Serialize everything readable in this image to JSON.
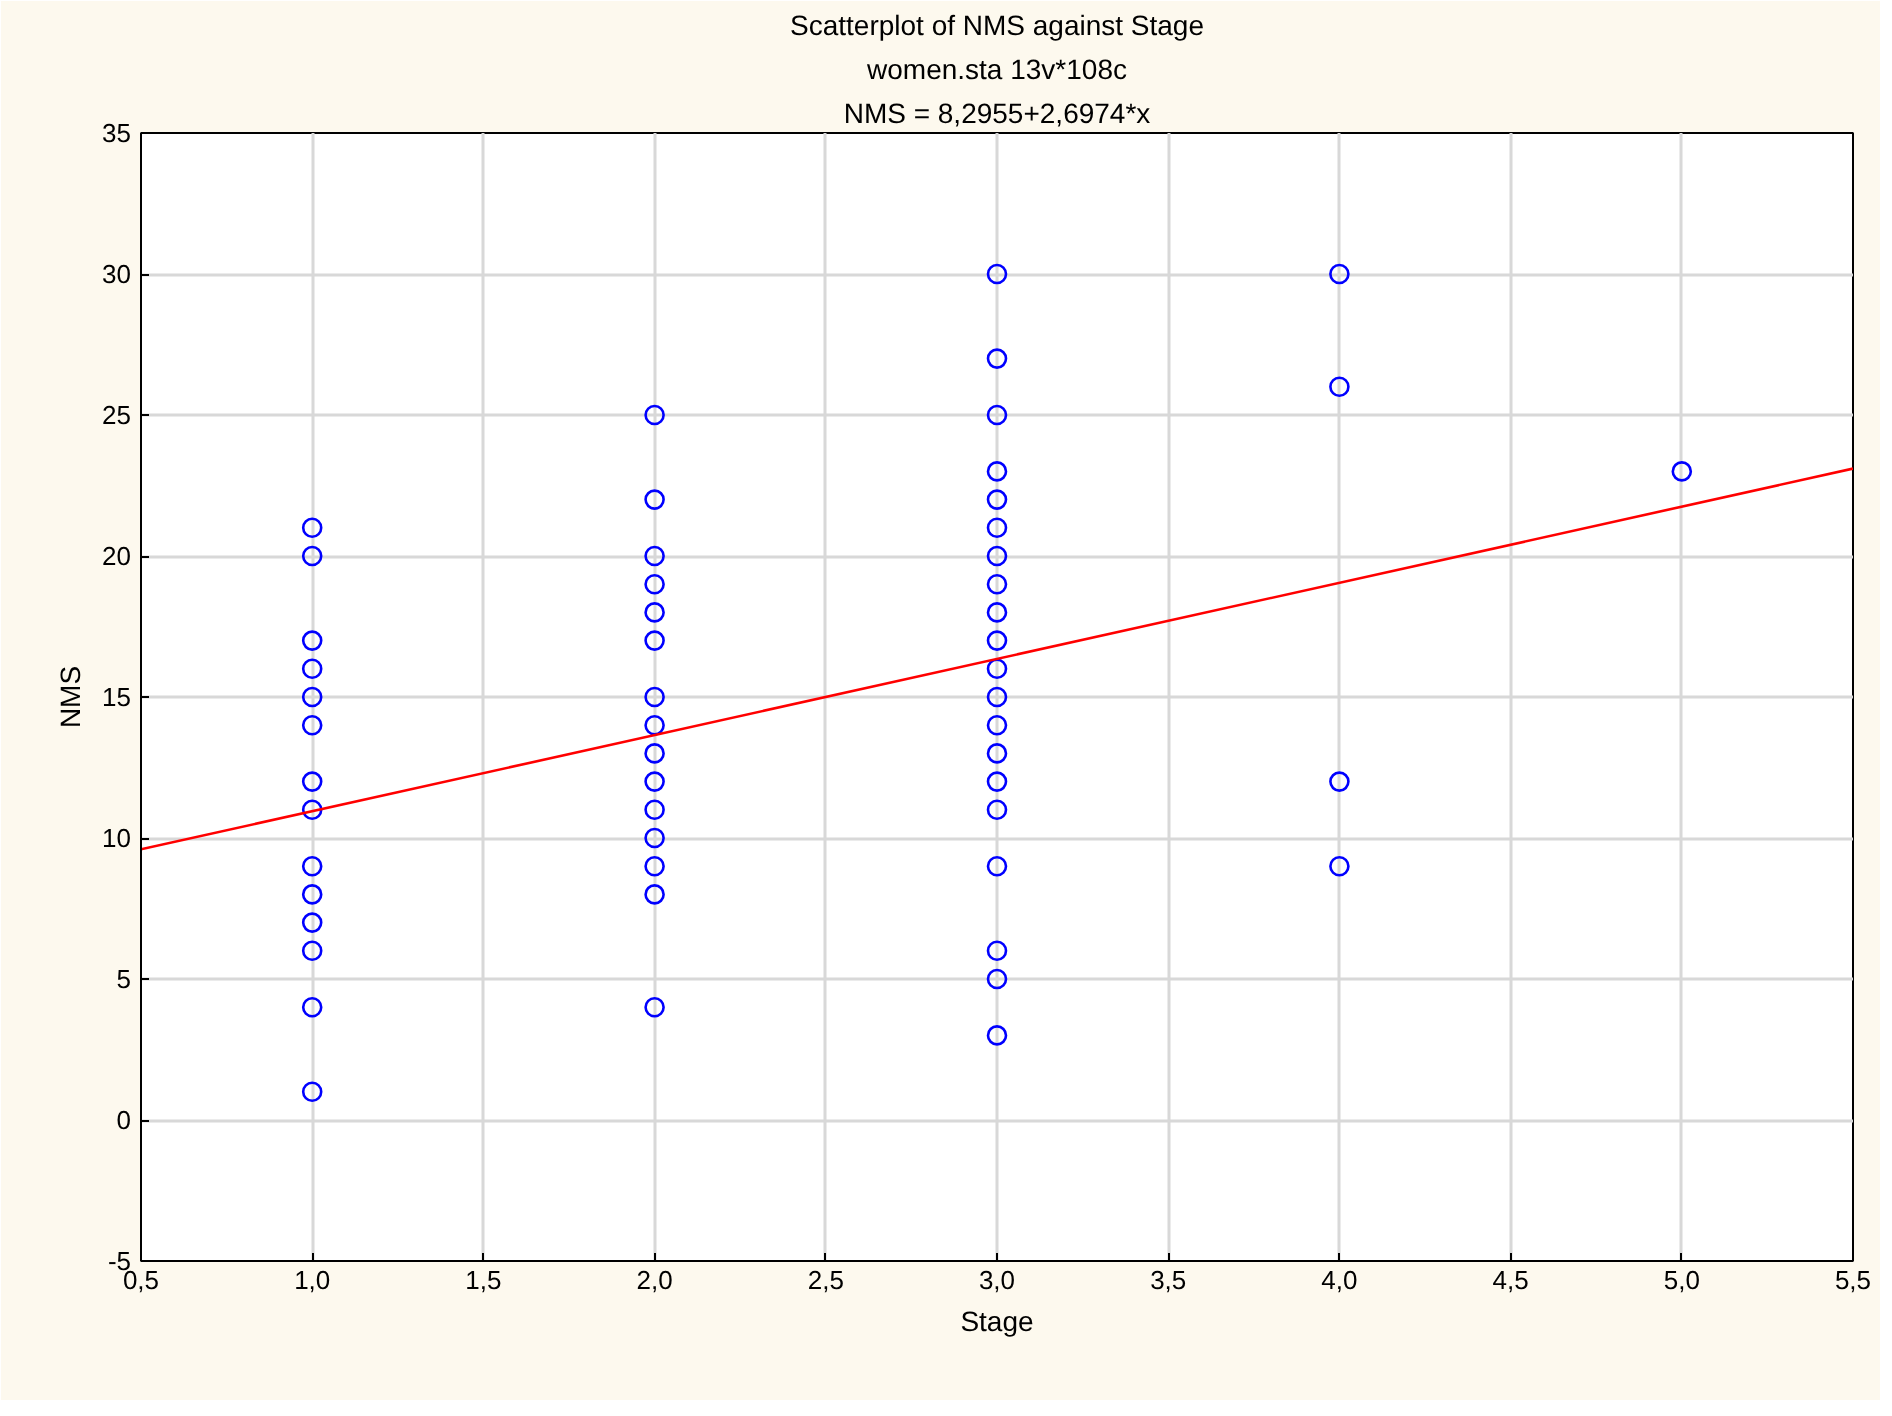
{
  "chart_data": {
    "type": "scatter",
    "title": "Scatterplot of NMS against Stage",
    "subtitle": "women.sta 13v*108c",
    "annotations": [
      "NMS = 8,2955+2,6974*x"
    ],
    "xlabel": "Stage",
    "ylabel": "NMS",
    "series": [
      {
        "color": "#0000ff",
        "marker": "circle",
        "x": [
          1,
          1,
          1,
          1,
          1,
          1,
          1,
          1,
          1,
          1,
          1,
          1,
          1,
          1,
          2,
          2,
          2,
          2,
          2,
          2,
          2,
          2,
          2,
          2,
          2,
          2,
          2,
          2,
          2,
          3,
          3,
          3,
          3,
          3,
          3,
          3,
          3,
          3,
          3,
          3,
          3,
          3,
          3,
          3,
          3,
          3,
          3,
          3,
          3,
          4,
          4,
          4,
          4,
          5
        ],
        "values": [
          21,
          20,
          17,
          16,
          15,
          14,
          12,
          11,
          9,
          8,
          7,
          6,
          4,
          1,
          25,
          22,
          20,
          19,
          18,
          17,
          15,
          14,
          13,
          12,
          11,
          10,
          9,
          8,
          4,
          30,
          27,
          25,
          23,
          22,
          21,
          20,
          19,
          18,
          17,
          16,
          15,
          14,
          13,
          12,
          11,
          9,
          6,
          5,
          3,
          30,
          26,
          12,
          9,
          23
        ]
      },
      {
        "type": "line",
        "color": "#ff0000",
        "marker": "none",
        "x": [
          0.5,
          5.5
        ],
        "values": [
          9.6,
          23.1
        ]
      }
    ],
    "xlim": [
      0.5,
      5.5
    ],
    "ylim": [
      -5,
      35
    ],
    "xticks": [
      {
        "value": 0.5,
        "label": "0,5"
      },
      {
        "value": 1.0,
        "label": "1,0"
      },
      {
        "value": 1.5,
        "label": "1,5"
      },
      {
        "value": 2.0,
        "label": "2,0"
      },
      {
        "value": 2.5,
        "label": "2,5"
      },
      {
        "value": 3.0,
        "label": "3,0"
      },
      {
        "value": 3.5,
        "label": "3,5"
      },
      {
        "value": 4.0,
        "label": "4,0"
      },
      {
        "value": 4.5,
        "label": "4,5"
      },
      {
        "value": 5.0,
        "label": "5,0"
      },
      {
        "value": 5.5,
        "label": "5,5"
      }
    ],
    "yticks": [
      -5,
      0,
      5,
      10,
      15,
      20,
      25,
      30,
      35
    ],
    "grid": true
  }
}
